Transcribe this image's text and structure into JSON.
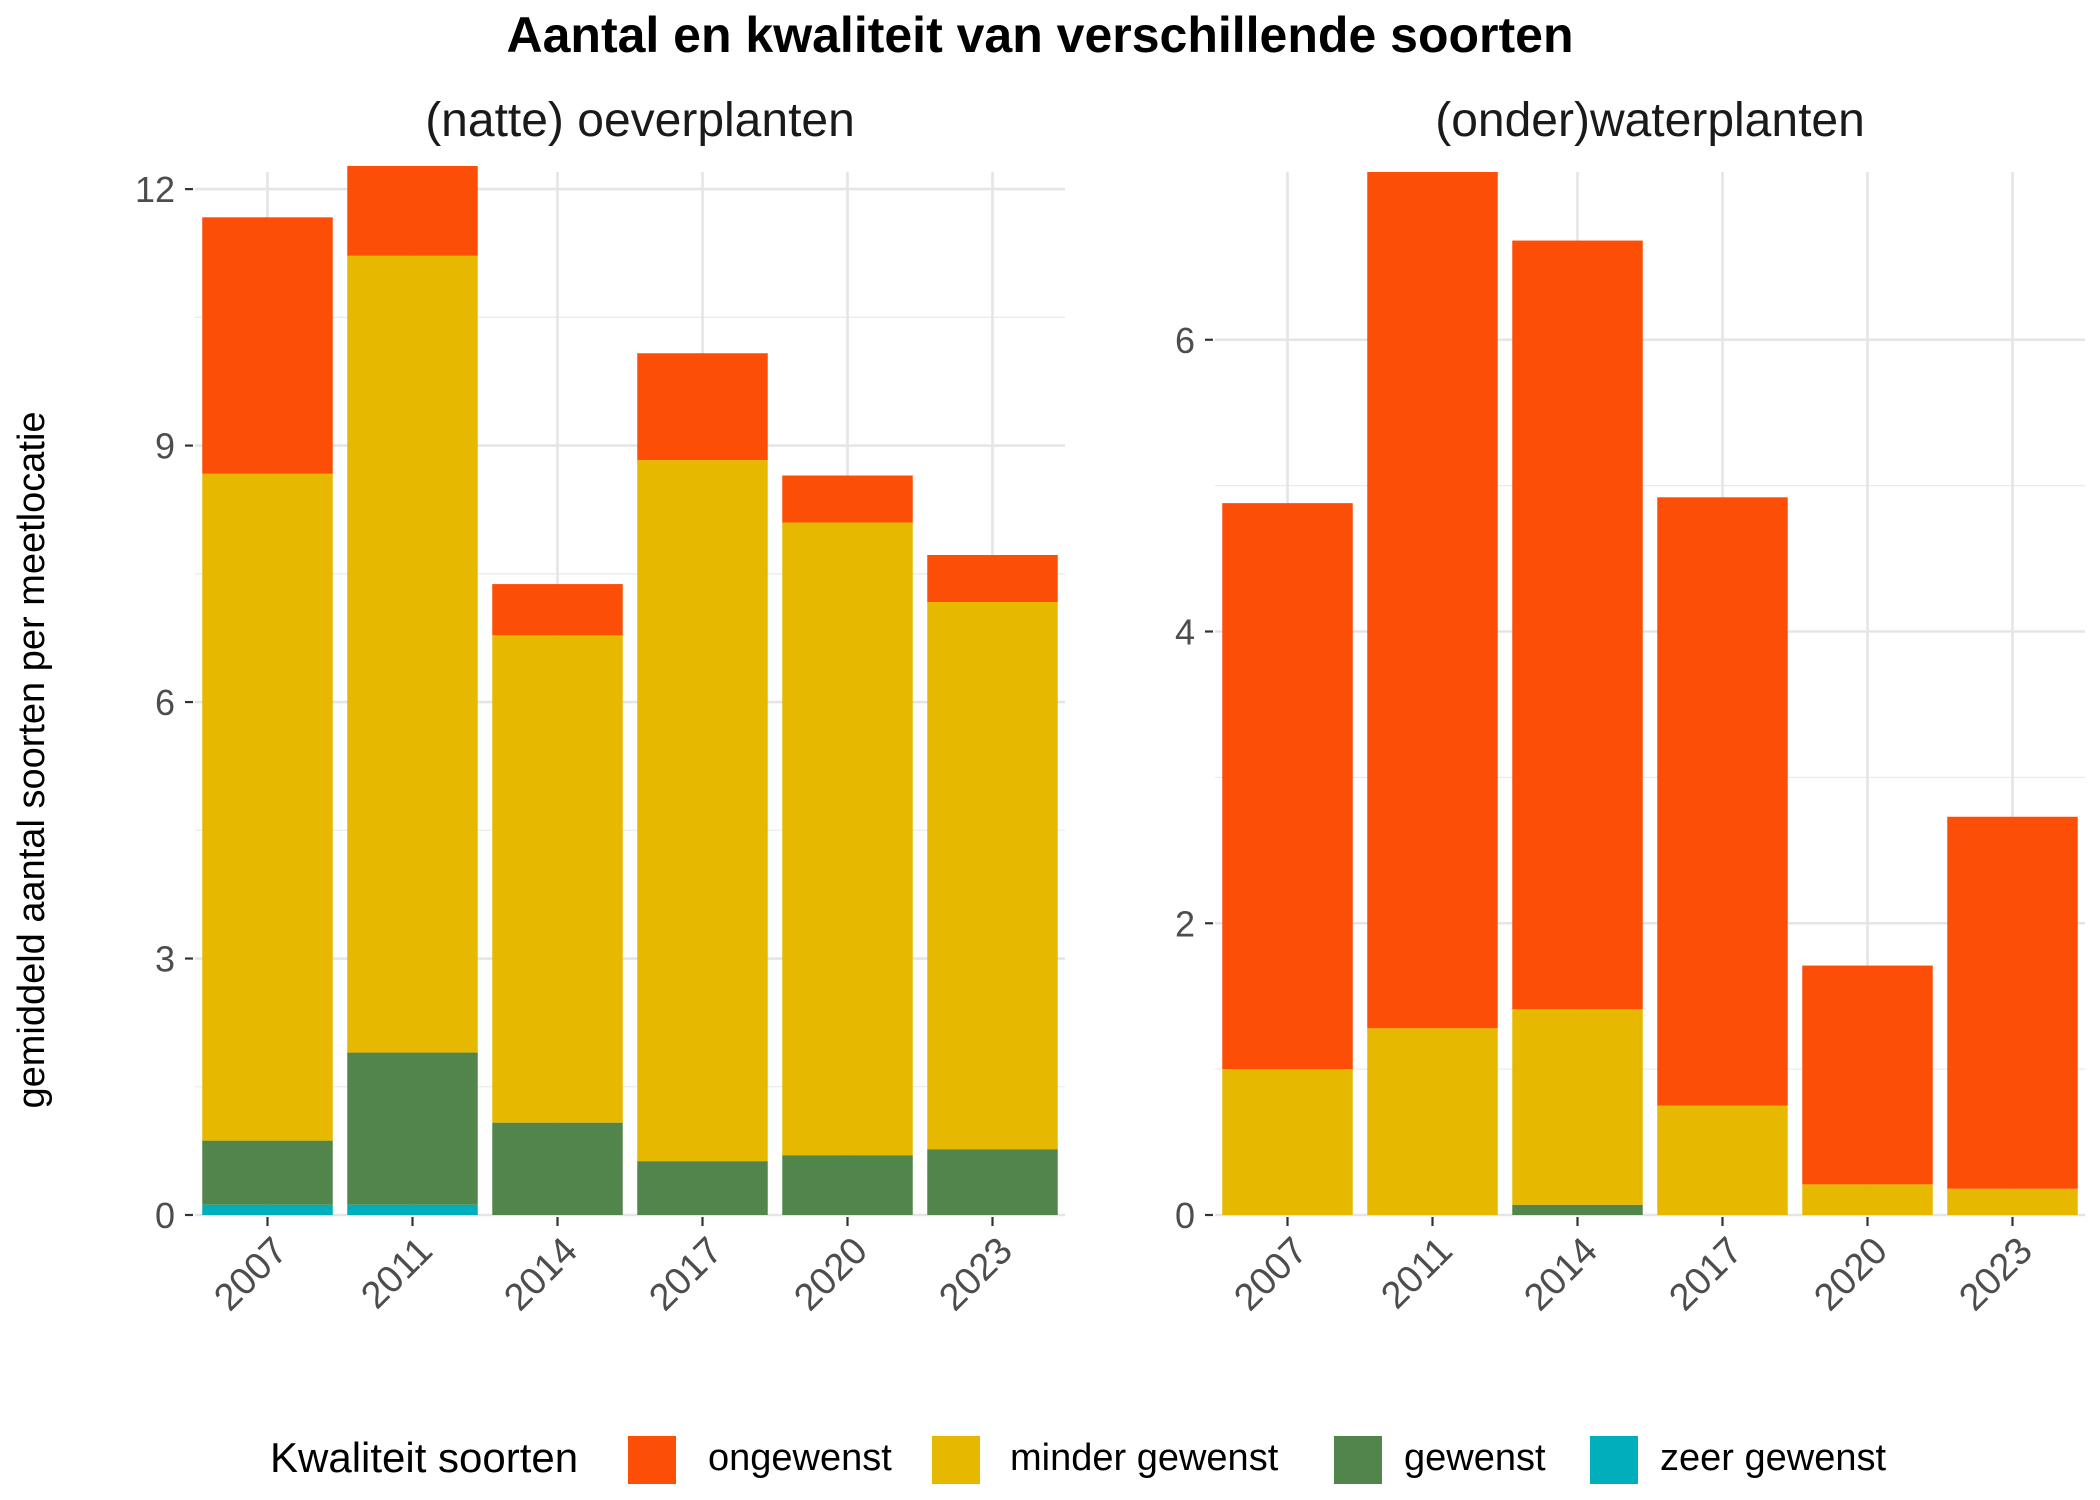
{
  "chart_data": {
    "type": "bar",
    "stacked": true,
    "title": "Aantal en kwaliteit van verschillende soorten",
    "ylabel": "gemiddeld aantal soorten per meetlocatie",
    "legend": {
      "title": "Kwaliteit soorten",
      "position": "bottom",
      "entries": [
        "ongewenst",
        "minder gewenst",
        "gewenst",
        "zeer gewenst"
      ]
    },
    "colors": {
      "ongewenst": "#FC4E07",
      "minder gewenst": "#E7B800",
      "gewenst": "#52854C",
      "zeer gewenst": "#00AFBB"
    },
    "grid": true,
    "panels": [
      {
        "subtitle": "(natte) oeverplanten",
        "categories": [
          "2007",
          "2011",
          "2014",
          "2017",
          "2020",
          "2023"
        ],
        "ylim": [
          0,
          12.2
        ],
        "yticks": [
          0,
          3,
          6,
          9,
          12
        ],
        "series": [
          {
            "name": "zeer gewenst",
            "values": [
              0.12,
              0.12,
              0,
              0,
              0,
              0
            ]
          },
          {
            "name": "gewenst",
            "values": [
              0.75,
              1.78,
              1.08,
              0.63,
              0.7,
              0.77
            ]
          },
          {
            "name": "minder gewenst",
            "values": [
              7.8,
              9.32,
              5.7,
              8.2,
              7.4,
              6.4
            ]
          },
          {
            "name": "ongewenst",
            "values": [
              3.0,
              1.05,
              0.6,
              1.25,
              0.55,
              0.55
            ]
          }
        ]
      },
      {
        "subtitle": "(onder)waterplanten",
        "categories": [
          "2007",
          "2011",
          "2014",
          "2017",
          "2020",
          "2023"
        ],
        "ylim": [
          0,
          7.15
        ],
        "yticks": [
          0,
          2,
          4,
          6
        ],
        "series": [
          {
            "name": "zeer gewenst",
            "values": [
              0,
              0,
              0,
              0,
              0,
              0
            ]
          },
          {
            "name": "gewenst",
            "values": [
              0,
              0,
              0.07,
              0,
              0,
              0
            ]
          },
          {
            "name": "minder gewenst",
            "values": [
              1.0,
              1.28,
              1.34,
              0.75,
              0.21,
              0.18
            ]
          },
          {
            "name": "ongewenst",
            "values": [
              3.88,
              5.87,
              5.27,
              4.17,
              1.5,
              2.55
            ]
          }
        ]
      }
    ]
  }
}
